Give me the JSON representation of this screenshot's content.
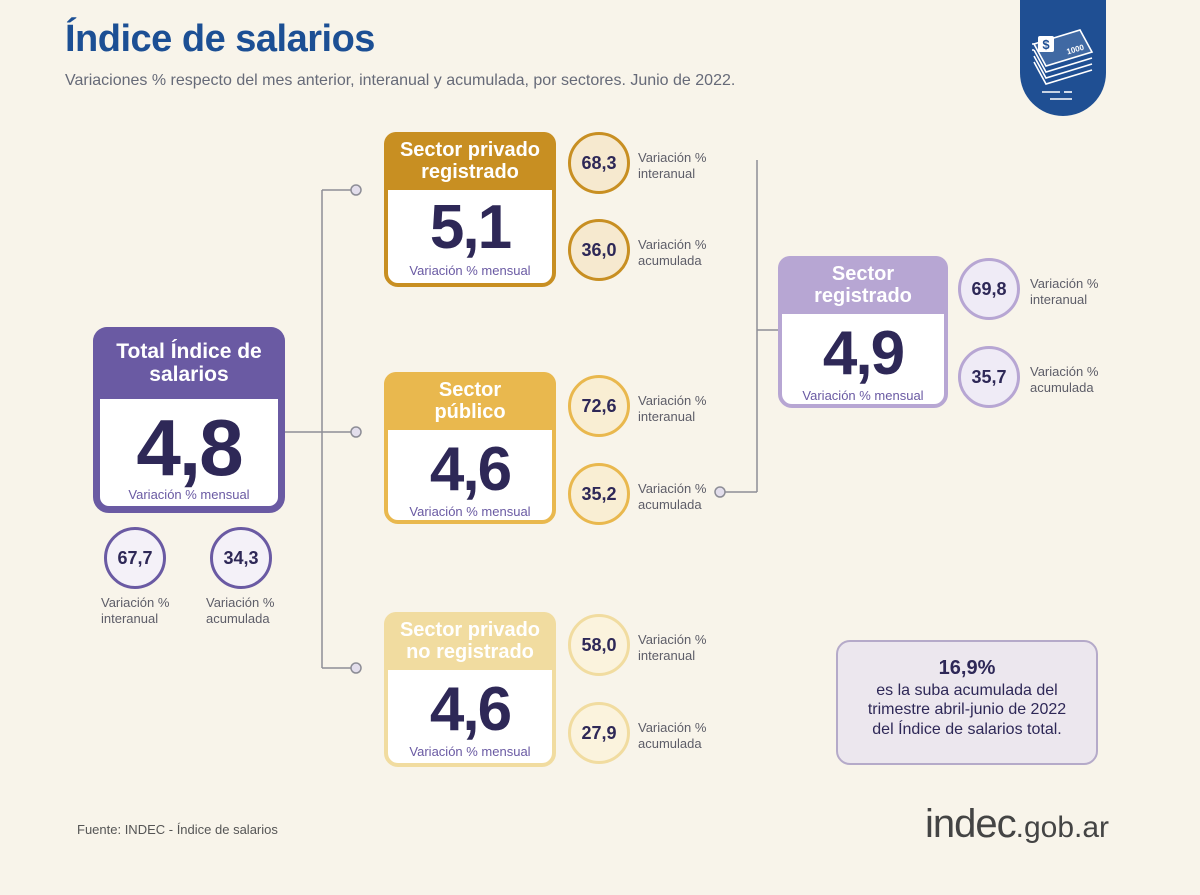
{
  "header": {
    "title": "Índice de salarios",
    "subtitle": "Variaciones % respecto del mes anterior, interanual y acumulada, por sectores. Junio de 2022."
  },
  "badge": {
    "icon": "money-stack-icon",
    "bill_text": "1000"
  },
  "colors": {
    "total": "#6a5aa3",
    "privado_registrado": "#c88f22",
    "publico": "#e9b84e",
    "privado_no_registrado": "#f1dca0",
    "registrado": "#b7a6d3",
    "brand_blue": "#1f4f93"
  },
  "total": {
    "title": "Total Índice de salarios",
    "value": "4,8",
    "caption": "Variación % mensual",
    "interanual": {
      "value": "67,7",
      "label": "Variación % interanual"
    },
    "acumulada": {
      "value": "34,3",
      "label": "Variación % acumulada"
    }
  },
  "privado_registrado": {
    "title": "Sector privado registrado",
    "value": "5,1",
    "caption": "Variación % mensual",
    "interanual": {
      "value": "68,3",
      "label": "Variación % interanual"
    },
    "acumulada": {
      "value": "36,0",
      "label": "Variación % acumulada"
    }
  },
  "publico": {
    "title": "Sector público",
    "value": "4,6",
    "caption": "Variación % mensual",
    "interanual": {
      "value": "72,6",
      "label": "Variación % interanual"
    },
    "acumulada": {
      "value": "35,2",
      "label": "Variación % acumulada"
    }
  },
  "privado_no_registrado": {
    "title": "Sector privado no registrado",
    "value": "4,6",
    "caption": "Variación % mensual",
    "interanual": {
      "value": "58,0",
      "label": "Variación % interanual"
    },
    "acumulada": {
      "value": "27,9",
      "label": "Variación % acumulada"
    }
  },
  "registrado": {
    "title": "Sector registrado",
    "value": "4,9",
    "caption": "Variación % mensual",
    "interanual": {
      "value": "69,8",
      "label": "Variación % interanual"
    },
    "acumulada": {
      "value": "35,7",
      "label": "Variación % acumulada"
    }
  },
  "note": {
    "highlight": "16,9%",
    "text": "es la suba acumulada del trimestre abril-junio de 2022 del Índice de salarios total."
  },
  "footer": {
    "source": "Fuente: INDEC - Índice de salarios",
    "logo_main": "indec",
    "logo_domain": ".gob.ar"
  }
}
